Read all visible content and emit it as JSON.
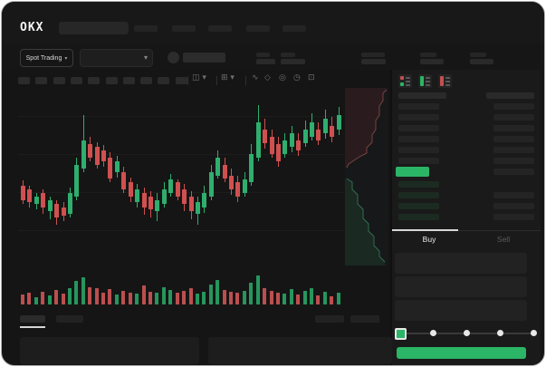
{
  "brand": {
    "logo": "OKX"
  },
  "market_bar": {
    "market_type_label": "Spot Trading",
    "chevron": "▾"
  },
  "chart_toolbar": {
    "interval_button_count": 10,
    "icons": [
      {
        "name": "chart-type-icon",
        "glyph": "◫ ▾"
      },
      {
        "name": "indicators-icon",
        "glyph": "⊞ ▾"
      },
      {
        "name": "line-tool-icon",
        "glyph": "∿"
      },
      {
        "name": "draw-tool-icon",
        "glyph": "◇"
      },
      {
        "name": "snapshot-icon",
        "glyph": "◎"
      },
      {
        "name": "history-icon",
        "glyph": "◷"
      },
      {
        "name": "fullscreen-icon",
        "glyph": "⊡"
      }
    ]
  },
  "orderbook": {
    "mode_icons": [
      "book-combined-icon",
      "book-bids-icon",
      "book-asks-icon"
    ],
    "rows": [
      {
        "side": "ask",
        "right": true
      },
      {
        "side": "ask",
        "right": true
      },
      {
        "side": "ask",
        "right": true
      },
      {
        "side": "ask",
        "right": true
      },
      {
        "side": "ask",
        "right": true
      },
      {
        "side": "ask",
        "right": true
      },
      {
        "side": "last",
        "right": true
      },
      {
        "side": "bid",
        "right": false
      },
      {
        "side": "bid",
        "right": true
      },
      {
        "side": "bid",
        "right": true
      },
      {
        "side": "bid",
        "right": true
      }
    ]
  },
  "trade_panel": {
    "buy_tab_label": "Buy",
    "sell_tab_label": "Sell",
    "field_count": 3,
    "slider": {
      "stop_count": 5,
      "active_index": 0
    }
  },
  "colors": {
    "up": "#2fae6e",
    "down": "#d05050",
    "volume_up": "#27955d",
    "volume_down": "#bb4f4f",
    "accent_green": "#2bb566",
    "bid_row": "#1c2b22",
    "ask_row": "#242424"
  },
  "chart_data": {
    "type": "candlestick",
    "units": "percent_from_pane_top",
    "candles": [
      [
        54,
        62,
        51,
        64,
        0
      ],
      [
        56,
        63,
        54,
        66,
        0
      ],
      [
        60,
        64,
        58,
        67,
        1
      ],
      [
        58,
        66,
        56,
        70,
        0
      ],
      [
        62,
        68,
        60,
        73,
        1
      ],
      [
        64,
        72,
        62,
        76,
        0
      ],
      [
        66,
        71,
        63,
        74,
        0
      ],
      [
        58,
        70,
        55,
        72,
        1
      ],
      [
        42,
        60,
        38,
        62,
        1
      ],
      [
        28,
        44,
        14,
        46,
        1
      ],
      [
        30,
        38,
        26,
        40,
        0
      ],
      [
        32,
        42,
        29,
        44,
        0
      ],
      [
        34,
        40,
        31,
        43,
        0
      ],
      [
        38,
        50,
        35,
        52,
        0
      ],
      [
        40,
        46,
        37,
        49,
        1
      ],
      [
        46,
        56,
        43,
        58,
        0
      ],
      [
        52,
        60,
        49,
        63,
        0
      ],
      [
        56,
        63,
        53,
        66,
        1
      ],
      [
        58,
        66,
        55,
        70,
        0
      ],
      [
        60,
        67,
        57,
        72,
        0
      ],
      [
        62,
        68,
        58,
        74,
        1
      ],
      [
        56,
        64,
        52,
        66,
        1
      ],
      [
        50,
        58,
        47,
        60,
        1
      ],
      [
        52,
        60,
        50,
        62,
        0
      ],
      [
        56,
        64,
        53,
        68,
        0
      ],
      [
        60,
        68,
        57,
        73,
        0
      ],
      [
        63,
        70,
        60,
        76,
        1
      ],
      [
        58,
        66,
        54,
        69,
        1
      ],
      [
        46,
        60,
        42,
        62,
        1
      ],
      [
        38,
        48,
        34,
        50,
        1
      ],
      [
        42,
        50,
        38,
        52,
        0
      ],
      [
        48,
        56,
        44,
        59,
        0
      ],
      [
        52,
        60,
        48,
        63,
        0
      ],
      [
        50,
        58,
        46,
        60,
        1
      ],
      [
        36,
        52,
        30,
        54,
        1
      ],
      [
        18,
        38,
        8,
        40,
        1
      ],
      [
        22,
        30,
        16,
        33,
        0
      ],
      [
        26,
        36,
        22,
        38,
        0
      ],
      [
        30,
        40,
        26,
        43,
        0
      ],
      [
        28,
        36,
        24,
        38,
        1
      ],
      [
        24,
        32,
        20,
        35,
        1
      ],
      [
        28,
        34,
        24,
        37,
        0
      ],
      [
        22,
        30,
        17,
        32,
        1
      ],
      [
        18,
        26,
        13,
        28,
        1
      ],
      [
        22,
        28,
        18,
        31,
        0
      ],
      [
        16,
        24,
        11,
        27,
        1
      ],
      [
        20,
        26,
        15,
        29,
        0
      ],
      [
        14,
        22,
        9,
        25,
        1
      ]
    ],
    "volumes": [
      [
        35,
        0
      ],
      [
        40,
        0
      ],
      [
        25,
        1
      ],
      [
        45,
        0
      ],
      [
        30,
        1
      ],
      [
        50,
        0
      ],
      [
        38,
        0
      ],
      [
        55,
        1
      ],
      [
        80,
        1
      ],
      [
        95,
        1
      ],
      [
        60,
        0
      ],
      [
        55,
        0
      ],
      [
        40,
        0
      ],
      [
        52,
        0
      ],
      [
        35,
        1
      ],
      [
        48,
        0
      ],
      [
        42,
        0
      ],
      [
        38,
        1
      ],
      [
        65,
        0
      ],
      [
        45,
        0
      ],
      [
        40,
        1
      ],
      [
        58,
        1
      ],
      [
        50,
        1
      ],
      [
        42,
        0
      ],
      [
        48,
        0
      ],
      [
        55,
        0
      ],
      [
        38,
        1
      ],
      [
        45,
        1
      ],
      [
        70,
        1
      ],
      [
        85,
        1
      ],
      [
        50,
        0
      ],
      [
        45,
        0
      ],
      [
        40,
        0
      ],
      [
        48,
        1
      ],
      [
        75,
        1
      ],
      [
        100,
        1
      ],
      [
        55,
        0
      ],
      [
        48,
        0
      ],
      [
        42,
        0
      ],
      [
        38,
        1
      ],
      [
        52,
        1
      ],
      [
        35,
        0
      ],
      [
        48,
        1
      ],
      [
        55,
        1
      ],
      [
        30,
        0
      ],
      [
        45,
        1
      ],
      [
        28,
        0
      ],
      [
        40,
        1
      ]
    ]
  }
}
